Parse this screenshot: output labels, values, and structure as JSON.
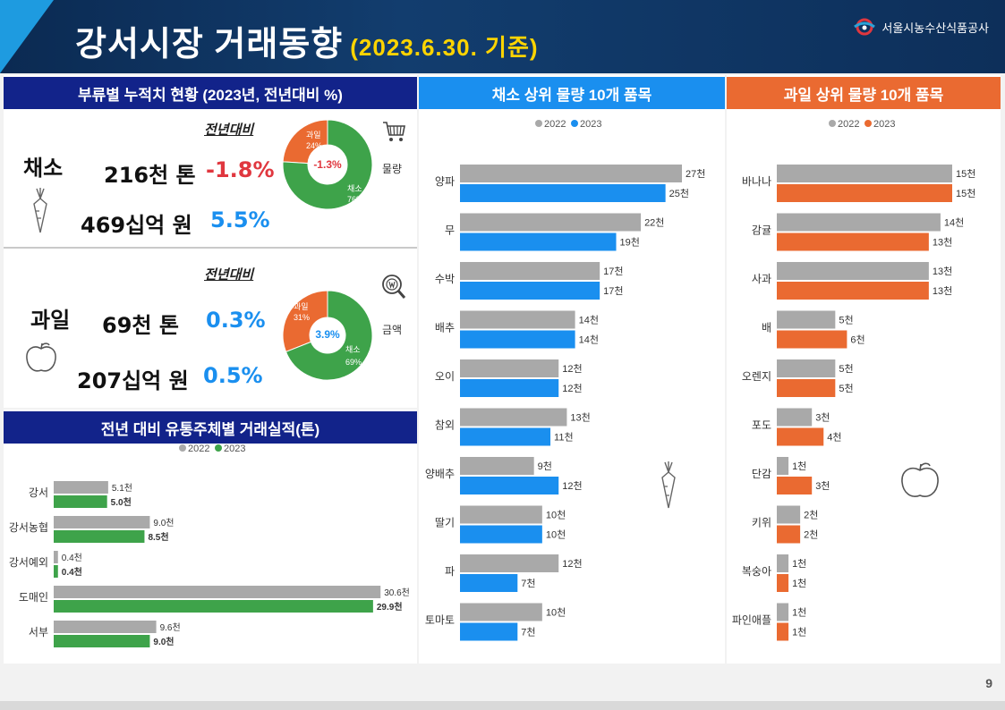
{
  "header": {
    "title": "강서시장 거래동향",
    "date": "(2023.6.30. 기준)",
    "brand": "서울시농수산식품공사"
  },
  "cumulative": {
    "title": "부류별 누적치 현황 (2023년, 전년대비 %)",
    "yoy_label": "전년대비",
    "veg": {
      "name": "채소",
      "volume": "216천 톤",
      "volume_pct": "-1.8%",
      "amount": "469십억 원",
      "amount_pct": "5.5%"
    },
    "fruit": {
      "name": "과일",
      "volume": "69천 톤",
      "volume_pct": "0.3%",
      "amount": "207십억 원",
      "amount_pct": "0.5%"
    },
    "donut_volume": {
      "label": "물량",
      "center": "-1.3%",
      "fruit_label": "과일",
      "fruit_pct": "24%",
      "veg_label": "채소",
      "veg_pct": "76%",
      "fruit_share": 24
    },
    "donut_amount": {
      "label": "금액",
      "center": "3.9%",
      "fruit_label": "과일",
      "fruit_pct": "31%",
      "veg_label": "채소",
      "veg_pct": "69%",
      "fruit_share": 31
    }
  },
  "colors": {
    "gray": "#a9a9a9",
    "green": "#3ea34a",
    "blue": "#1a8fef",
    "orange": "#ea6a31"
  },
  "chart_data": [
    {
      "type": "bar",
      "title": "전년 대비 유통주체별 거래실적(톤)",
      "legend": [
        "2022",
        "2023"
      ],
      "categories": [
        "강서",
        "강서농협",
        "강서예외",
        "도매인",
        "서부"
      ],
      "series": [
        {
          "name": "2022",
          "values": [
            5.1,
            9.0,
            0.4,
            30.6,
            9.6
          ],
          "labels": [
            "5.1천",
            "9.0천",
            "0.4천",
            "30.6천",
            "9.6천"
          ]
        },
        {
          "name": "2023",
          "values": [
            5.0,
            8.5,
            0.4,
            29.9,
            9.0
          ],
          "labels": [
            "5.0천",
            "8.5천",
            "0.4천",
            "29.9천",
            "9.0천"
          ]
        }
      ],
      "xlim": [
        0,
        31
      ]
    },
    {
      "type": "bar",
      "title": "채소 상위 물량 10개 품목",
      "legend": [
        "2022",
        "2023"
      ],
      "categories": [
        "양파",
        "무",
        "수박",
        "배추",
        "오이",
        "참외",
        "양배추",
        "딸기",
        "파",
        "토마토"
      ],
      "series": [
        {
          "name": "2022",
          "values": [
            27,
            22,
            17,
            14,
            12,
            13,
            9,
            10,
            12,
            10
          ],
          "labels": [
            "27천",
            "22천",
            "17천",
            "14천",
            "12천",
            "13천",
            "9천",
            "10천",
            "12천",
            "10천"
          ]
        },
        {
          "name": "2023",
          "values": [
            25,
            19,
            17,
            14,
            12,
            11,
            12,
            10,
            7,
            7
          ],
          "labels": [
            "25천",
            "19천",
            "17천",
            "14천",
            "12천",
            "11천",
            "12천",
            "10천",
            "7천",
            "7천"
          ]
        }
      ],
      "xlim": [
        0,
        27
      ]
    },
    {
      "type": "bar",
      "title": "과일 상위 물량 10개 품목",
      "legend": [
        "2022",
        "2023"
      ],
      "categories": [
        "바나나",
        "감귤",
        "사과",
        "배",
        "오렌지",
        "포도",
        "단감",
        "키위",
        "복숭아",
        "파인애플"
      ],
      "series": [
        {
          "name": "2022",
          "values": [
            15,
            14,
            13,
            5,
            5,
            3,
            1,
            2,
            1,
            1
          ],
          "labels": [
            "15천",
            "14천",
            "13천",
            "5천",
            "5천",
            "3천",
            "1천",
            "2천",
            "1천",
            "1천"
          ]
        },
        {
          "name": "2023",
          "values": [
            15,
            13,
            13,
            6,
            5,
            4,
            3,
            2,
            1,
            1
          ],
          "labels": [
            "15천",
            "13천",
            "13천",
            "6천",
            "5천",
            "4천",
            "3천",
            "2천",
            "1천",
            "1천"
          ]
        }
      ],
      "xlim": [
        0,
        15
      ]
    }
  ],
  "page_number": "9"
}
